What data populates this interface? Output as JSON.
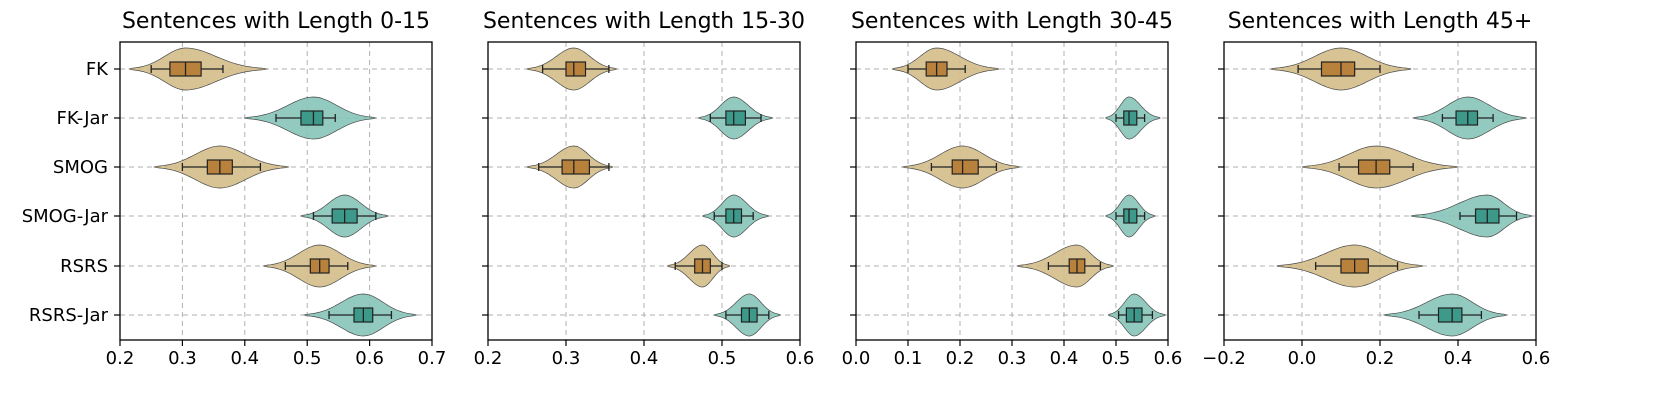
{
  "chart_data": [
    {
      "type": "violin",
      "title": "Sentences with Length 0-15",
      "xlim": [
        0.2,
        0.7
      ],
      "xticks": [
        "0.2",
        "0.3",
        "0.4",
        "0.5",
        "0.6",
        "0.7"
      ],
      "xtick_values": [
        0.2,
        0.3,
        0.4,
        0.5,
        0.6,
        0.7
      ],
      "categories": [
        "FK",
        "FK-Jar",
        "SMOG",
        "SMOG-Jar",
        "RSRS",
        "RSRS-Jar"
      ],
      "grid": true,
      "series": [
        {
          "category": "FK",
          "min": 0.25,
          "q1": 0.28,
          "median": 0.305,
          "q3": 0.33,
          "max": 0.365,
          "extent": [
            0.215,
            0.435
          ]
        },
        {
          "category": "FK-Jar",
          "min": 0.45,
          "q1": 0.49,
          "median": 0.51,
          "q3": 0.525,
          "max": 0.545,
          "extent": [
            0.4,
            0.61
          ]
        },
        {
          "category": "SMOG",
          "min": 0.3,
          "q1": 0.34,
          "median": 0.36,
          "q3": 0.38,
          "max": 0.425,
          "extent": [
            0.255,
            0.47
          ]
        },
        {
          "category": "SMOG-Jar",
          "min": 0.51,
          "q1": 0.54,
          "median": 0.56,
          "q3": 0.58,
          "max": 0.61,
          "extent": [
            0.49,
            0.63
          ]
        },
        {
          "category": "RSRS",
          "min": 0.465,
          "q1": 0.505,
          "median": 0.52,
          "q3": 0.535,
          "max": 0.565,
          "extent": [
            0.43,
            0.61
          ]
        },
        {
          "category": "RSRS-Jar",
          "min": 0.535,
          "q1": 0.575,
          "median": 0.59,
          "q3": 0.605,
          "max": 0.635,
          "extent": [
            0.495,
            0.675
          ]
        }
      ]
    },
    {
      "type": "violin",
      "title": "Sentences with Length 15-30",
      "xlim": [
        0.2,
        0.6
      ],
      "xticks": [
        "0.2",
        "0.3",
        "0.4",
        "0.5",
        "0.6"
      ],
      "xtick_values": [
        0.2,
        0.3,
        0.4,
        0.5,
        0.6
      ],
      "categories": [
        "FK",
        "FK-Jar",
        "SMOG",
        "SMOG-Jar",
        "RSRS",
        "RSRS-Jar"
      ],
      "grid": true,
      "series": [
        {
          "category": "FK",
          "min": 0.27,
          "q1": 0.3,
          "median": 0.31,
          "q3": 0.325,
          "max": 0.355,
          "extent": [
            0.25,
            0.365
          ]
        },
        {
          "category": "FK-Jar",
          "min": 0.485,
          "q1": 0.505,
          "median": 0.515,
          "q3": 0.53,
          "max": 0.55,
          "extent": [
            0.47,
            0.565
          ]
        },
        {
          "category": "SMOG",
          "min": 0.265,
          "q1": 0.295,
          "median": 0.31,
          "q3": 0.33,
          "max": 0.355,
          "extent": [
            0.25,
            0.36
          ]
        },
        {
          "category": "SMOG-Jar",
          "min": 0.49,
          "q1": 0.505,
          "median": 0.515,
          "q3": 0.525,
          "max": 0.54,
          "extent": [
            0.475,
            0.56
          ]
        },
        {
          "category": "RSRS",
          "min": 0.44,
          "q1": 0.465,
          "median": 0.475,
          "q3": 0.485,
          "max": 0.5,
          "extent": [
            0.43,
            0.51
          ]
        },
        {
          "category": "RSRS-Jar",
          "min": 0.505,
          "q1": 0.525,
          "median": 0.535,
          "q3": 0.545,
          "max": 0.56,
          "extent": [
            0.49,
            0.575
          ]
        }
      ]
    },
    {
      "type": "violin",
      "title": "Sentences with Length 30-45",
      "xlim": [
        0.0,
        0.6
      ],
      "xticks": [
        "0.0",
        "0.1",
        "0.2",
        "0.3",
        "0.4",
        "0.5",
        "0.6"
      ],
      "xtick_values": [
        0.0,
        0.1,
        0.2,
        0.3,
        0.4,
        0.5,
        0.6
      ],
      "categories": [
        "FK",
        "FK-Jar",
        "SMOG",
        "SMOG-Jar",
        "RSRS",
        "RSRS-Jar"
      ],
      "grid": true,
      "series": [
        {
          "category": "FK",
          "min": 0.1,
          "q1": 0.135,
          "median": 0.155,
          "q3": 0.175,
          "max": 0.21,
          "extent": [
            0.07,
            0.275
          ]
        },
        {
          "category": "FK-Jar",
          "min": 0.5,
          "q1": 0.515,
          "median": 0.525,
          "q3": 0.54,
          "max": 0.555,
          "extent": [
            0.48,
            0.585
          ]
        },
        {
          "category": "SMOG",
          "min": 0.145,
          "q1": 0.185,
          "median": 0.205,
          "q3": 0.235,
          "max": 0.27,
          "extent": [
            0.09,
            0.315
          ]
        },
        {
          "category": "SMOG-Jar",
          "min": 0.5,
          "q1": 0.515,
          "median": 0.525,
          "q3": 0.54,
          "max": 0.555,
          "extent": [
            0.48,
            0.575
          ]
        },
        {
          "category": "RSRS",
          "min": 0.37,
          "q1": 0.41,
          "median": 0.425,
          "q3": 0.44,
          "max": 0.47,
          "extent": [
            0.31,
            0.495
          ]
        },
        {
          "category": "RSRS-Jar",
          "min": 0.505,
          "q1": 0.52,
          "median": 0.535,
          "q3": 0.55,
          "max": 0.57,
          "extent": [
            0.485,
            0.595
          ]
        }
      ]
    },
    {
      "type": "violin",
      "title": "Sentences with Length 45+",
      "xlim": [
        -0.2,
        0.6
      ],
      "xticks": [
        "−0.2",
        "0.0",
        "0.2",
        "0.4",
        "0.6"
      ],
      "xtick_values": [
        -0.2,
        0.0,
        0.2,
        0.4,
        0.6
      ],
      "categories": [
        "FK",
        "FK-Jar",
        "SMOG",
        "SMOG-Jar",
        "RSRS",
        "RSRS-Jar"
      ],
      "grid": true,
      "series": [
        {
          "category": "FK",
          "min": -0.01,
          "q1": 0.05,
          "median": 0.1,
          "q3": 0.135,
          "max": 0.2,
          "extent": [
            -0.08,
            0.28
          ]
        },
        {
          "category": "FK-Jar",
          "min": 0.36,
          "q1": 0.395,
          "median": 0.425,
          "q3": 0.45,
          "max": 0.49,
          "extent": [
            0.285,
            0.575
          ]
        },
        {
          "category": "SMOG",
          "min": 0.095,
          "q1": 0.145,
          "median": 0.19,
          "q3": 0.225,
          "max": 0.285,
          "extent": [
            0.0,
            0.4
          ]
        },
        {
          "category": "SMOG-Jar",
          "min": 0.405,
          "q1": 0.445,
          "median": 0.475,
          "q3": 0.505,
          "max": 0.55,
          "extent": [
            0.28,
            0.59
          ]
        },
        {
          "category": "RSRS",
          "min": 0.035,
          "q1": 0.1,
          "median": 0.135,
          "q3": 0.17,
          "max": 0.245,
          "extent": [
            -0.065,
            0.31
          ]
        },
        {
          "category": "RSRS-Jar",
          "min": 0.3,
          "q1": 0.35,
          "median": 0.385,
          "q3": 0.41,
          "max": 0.46,
          "extent": [
            0.21,
            0.525
          ]
        }
      ]
    }
  ],
  "colors": {
    "orig_fill": "#d4bd8a",
    "orig_box": "#b8823c",
    "jar_fill": "#86c4b9",
    "jar_box": "#3d9a8b",
    "grid": "#b0b0b0",
    "edge": "#4a4a4a"
  }
}
